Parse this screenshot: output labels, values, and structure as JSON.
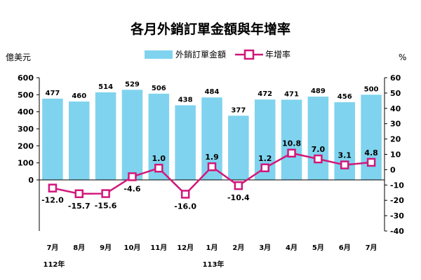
{
  "chart_data": {
    "type": "bar+line",
    "title": "各月外銷訂單金額與年增率",
    "left_axis": {
      "unit": "億美元",
      "ylim": [
        -300,
        600
      ],
      "ticks": [
        0,
        100,
        200,
        300,
        400,
        500,
        600
      ]
    },
    "right_axis": {
      "unit": "%",
      "ylim": [
        -40,
        60
      ],
      "ticks": [
        -40,
        -30,
        -20,
        -10,
        0,
        10,
        20,
        30,
        40,
        50,
        60
      ]
    },
    "categories": [
      "7月",
      "8月",
      "9月",
      "10月",
      "11月",
      "12月",
      "1月",
      "2月",
      "3月",
      "4月",
      "5月",
      "6月",
      "7月"
    ],
    "year_labels": [
      {
        "index": 0,
        "text": "112年"
      },
      {
        "index": 6,
        "text": "113年"
      }
    ],
    "series": [
      {
        "name": "外銷訂單金額",
        "type": "bar",
        "axis": "left",
        "color": "#7fd3ee",
        "values": [
          477,
          460,
          514,
          529,
          506,
          438,
          484,
          377,
          472,
          471,
          489,
          456,
          500
        ],
        "labels": [
          "477",
          "460",
          "514",
          "529",
          "506",
          "438",
          "484",
          "377",
          "472",
          "471",
          "489",
          "456",
          "500"
        ]
      },
      {
        "name": "年增率",
        "type": "line",
        "axis": "right",
        "color": "#d1177a",
        "values": [
          -12.0,
          -15.7,
          -15.6,
          -4.6,
          1.0,
          -16.0,
          1.9,
          -10.4,
          1.2,
          10.8,
          7.0,
          3.1,
          4.8
        ],
        "labels": [
          "-12.0",
          "-15.7",
          "-15.6",
          "-4.6",
          "1.0",
          "-16.0",
          "1.9",
          "-10.4",
          "1.2",
          "10.8",
          "7.0",
          "3.1",
          "4.8"
        ]
      }
    ],
    "legend": "top-center",
    "grid": false
  }
}
